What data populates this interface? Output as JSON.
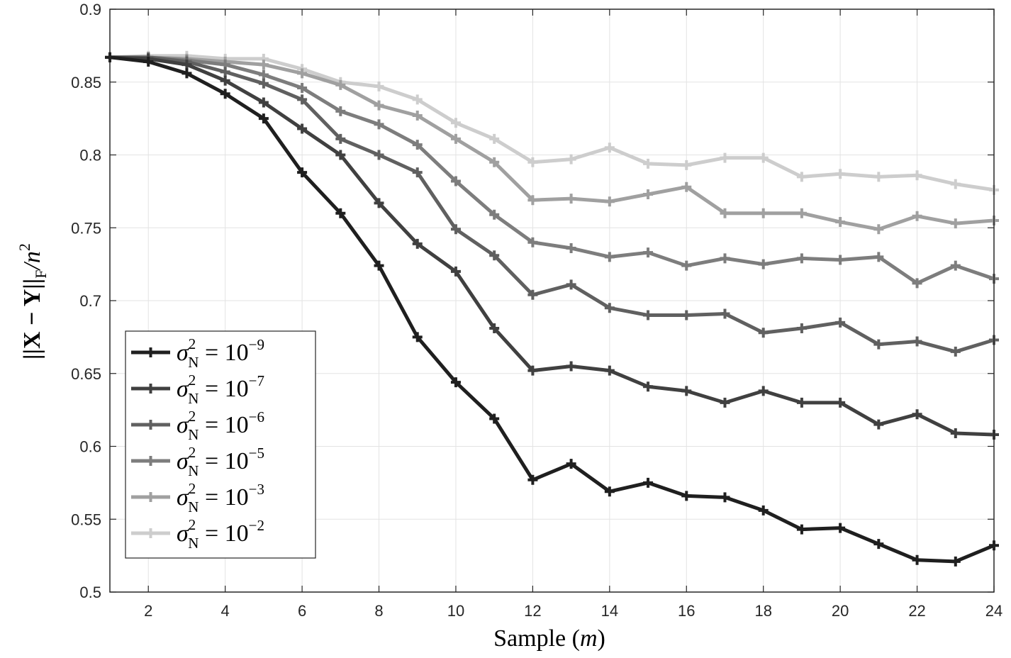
{
  "chart_data": {
    "type": "line",
    "title": "",
    "xlabel": {
      "prefix": "Sample (",
      "var": "m",
      "suffix": ")"
    },
    "ylabel": {
      "text": "||X − Y||",
      "sub": "F",
      "tail": "/n",
      "sup": "2"
    },
    "xlim": [
      1,
      24
    ],
    "ylim": [
      0.5,
      0.9
    ],
    "grid": true,
    "legend_position": "lower-left",
    "x_ticks": [
      "2",
      "4",
      "6",
      "8",
      "10",
      "12",
      "14",
      "16",
      "18",
      "20",
      "22",
      "24"
    ],
    "y_ticks": [
      "0.5",
      "0.55",
      "0.6",
      "0.65",
      "0.7",
      "0.75",
      "0.8",
      "0.85",
      "0.9"
    ],
    "x": [
      1,
      2,
      3,
      4,
      5,
      6,
      7,
      8,
      9,
      10,
      11,
      12,
      13,
      14,
      15,
      16,
      17,
      18,
      19,
      20,
      21,
      22,
      23,
      24
    ],
    "series": [
      {
        "name": "σ_N^2 = 10^-9",
        "label_sigma": "σ",
        "label_sup": "2",
        "label_sub": "N",
        "label_eq": "= 10",
        "label_exp": "−9",
        "color": "#1f1f1f",
        "values": [
          0.867,
          0.864,
          0.856,
          0.842,
          0.825,
          0.788,
          0.76,
          0.724,
          0.675,
          0.644,
          0.619,
          0.577,
          0.588,
          0.569,
          0.575,
          0.566,
          0.565,
          0.556,
          0.543,
          0.544,
          0.533,
          0.522,
          0.521,
          0.532
        ]
      },
      {
        "name": "σ_N^2 = 10^-7",
        "label_sigma": "σ",
        "label_sup": "2",
        "label_sub": "N",
        "label_eq": "= 10",
        "label_exp": "−7",
        "color": "#404040",
        "values": [
          0.867,
          0.866,
          0.862,
          0.851,
          0.836,
          0.818,
          0.8,
          0.767,
          0.739,
          0.72,
          0.681,
          0.652,
          0.655,
          0.652,
          0.641,
          0.638,
          0.63,
          0.638,
          0.63,
          0.63,
          0.615,
          0.622,
          0.609,
          0.608
        ]
      },
      {
        "name": "σ_N^2 = 10^-6",
        "label_sigma": "σ",
        "label_sup": "2",
        "label_sub": "N",
        "label_eq": "= 10",
        "label_exp": "−6",
        "color": "#606060",
        "values": [
          0.867,
          0.867,
          0.864,
          0.857,
          0.849,
          0.838,
          0.811,
          0.8,
          0.788,
          0.749,
          0.731,
          0.704,
          0.711,
          0.695,
          0.69,
          0.69,
          0.691,
          0.678,
          0.681,
          0.685,
          0.67,
          0.672,
          0.665,
          0.673
        ]
      },
      {
        "name": "σ_N^2 = 10^-5",
        "label_sigma": "σ",
        "label_sup": "2",
        "label_sub": "N",
        "label_eq": "= 10",
        "label_exp": "−5",
        "color": "#7d7d7d",
        "values": [
          0.867,
          0.867,
          0.865,
          0.862,
          0.855,
          0.846,
          0.83,
          0.821,
          0.807,
          0.782,
          0.759,
          0.74,
          0.736,
          0.73,
          0.733,
          0.724,
          0.729,
          0.725,
          0.729,
          0.728,
          0.73,
          0.712,
          0.724,
          0.715
        ]
      },
      {
        "name": "σ_N^2 = 10^-3",
        "label_sigma": "σ",
        "label_sup": "2",
        "label_sub": "N",
        "label_eq": "= 10",
        "label_exp": "−3",
        "color": "#a0a0a0",
        "values": [
          0.867,
          0.867,
          0.866,
          0.864,
          0.862,
          0.856,
          0.848,
          0.834,
          0.827,
          0.811,
          0.795,
          0.769,
          0.77,
          0.768,
          0.773,
          0.778,
          0.76,
          0.76,
          0.76,
          0.754,
          0.749,
          0.758,
          0.753,
          0.755
        ]
      },
      {
        "name": "σ_N^2 = 10^-2",
        "label_sigma": "σ",
        "label_sup": "2",
        "label_sub": "N",
        "label_eq": "= 10",
        "label_exp": "−2",
        "color": "#cdcdcd",
        "values": [
          0.867,
          0.868,
          0.868,
          0.866,
          0.866,
          0.859,
          0.85,
          0.847,
          0.838,
          0.822,
          0.811,
          0.795,
          0.797,
          0.805,
          0.794,
          0.793,
          0.798,
          0.798,
          0.785,
          0.787,
          0.785,
          0.786,
          0.78,
          0.776
        ]
      }
    ]
  }
}
